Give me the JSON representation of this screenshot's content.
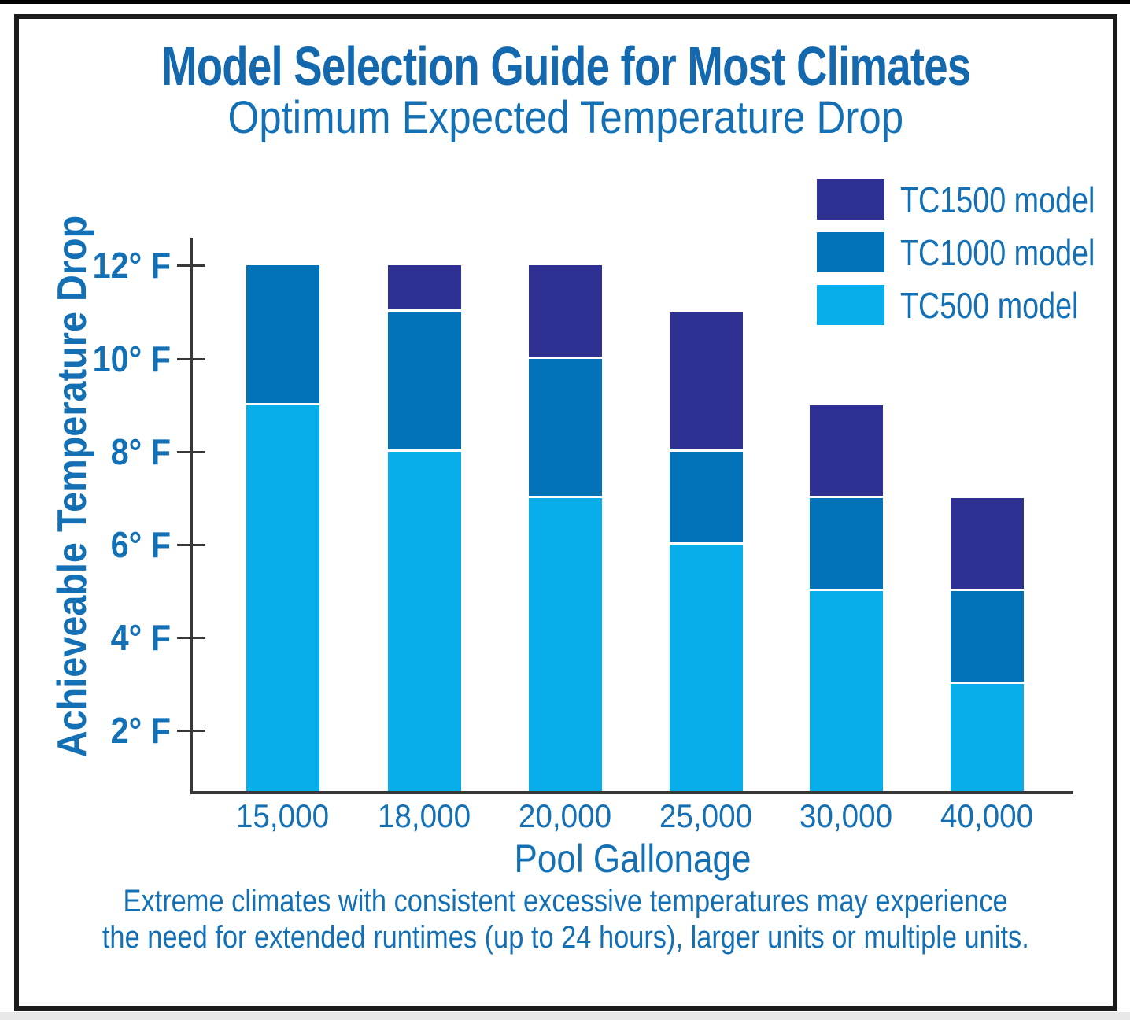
{
  "header": {
    "title": "Model Selection Guide for Most Climates",
    "subtitle": "Optimum Expected Temperature Drop"
  },
  "footnote": {
    "line1": "Extreme climates with consistent excessive temperatures may experience",
    "line2": "the need for extended runtimes (up to 24 hours), larger units or multiple units."
  },
  "colors": {
    "text": "#1470B5",
    "title": "#1468AE",
    "axis": "#383838",
    "frame": "#1B1B1B",
    "separator": "#FFFFFF",
    "tc1500": "#2E3192",
    "tc1000": "#0272B9",
    "tc500": "#07AEE9"
  },
  "chart_data": {
    "type": "bar",
    "stacked": true,
    "title": "Model Selection Guide for Most Climates",
    "subtitle": "Optimum Expected Temperature Drop",
    "xlabel": "Pool Gallonage",
    "ylabel": "Achieveable Temperature Drop",
    "categories": [
      "15,000",
      "18,000",
      "20,000",
      "25,000",
      "30,000",
      "40,000"
    ],
    "series": [
      {
        "name": "TC500 model",
        "color": "#07AEE9",
        "values": [
          9,
          8,
          7,
          6,
          5,
          3
        ]
      },
      {
        "name": "TC1000 model",
        "color": "#0272B9",
        "values": [
          3,
          3,
          3,
          2,
          2,
          2
        ]
      },
      {
        "name": "TC1500 model",
        "color": "#2E3192",
        "values": [
          0,
          1,
          2,
          3,
          2,
          2
        ]
      }
    ],
    "stack_totals": [
      12,
      12,
      12,
      11,
      9,
      7
    ],
    "yticks": [
      {
        "value": 2,
        "label": "2° F"
      },
      {
        "value": 4,
        "label": "4° F"
      },
      {
        "value": 6,
        "label": "6° F"
      },
      {
        "value": 8,
        "label": "8° F"
      },
      {
        "value": 10,
        "label": "10° F"
      },
      {
        "value": 12,
        "label": "12° F"
      }
    ],
    "ylim": [
      0.7,
      12.6
    ],
    "grid": false,
    "legend": {
      "position": "top-right",
      "order": [
        "TC1500 model",
        "TC1000 model",
        "TC500 model"
      ]
    }
  }
}
